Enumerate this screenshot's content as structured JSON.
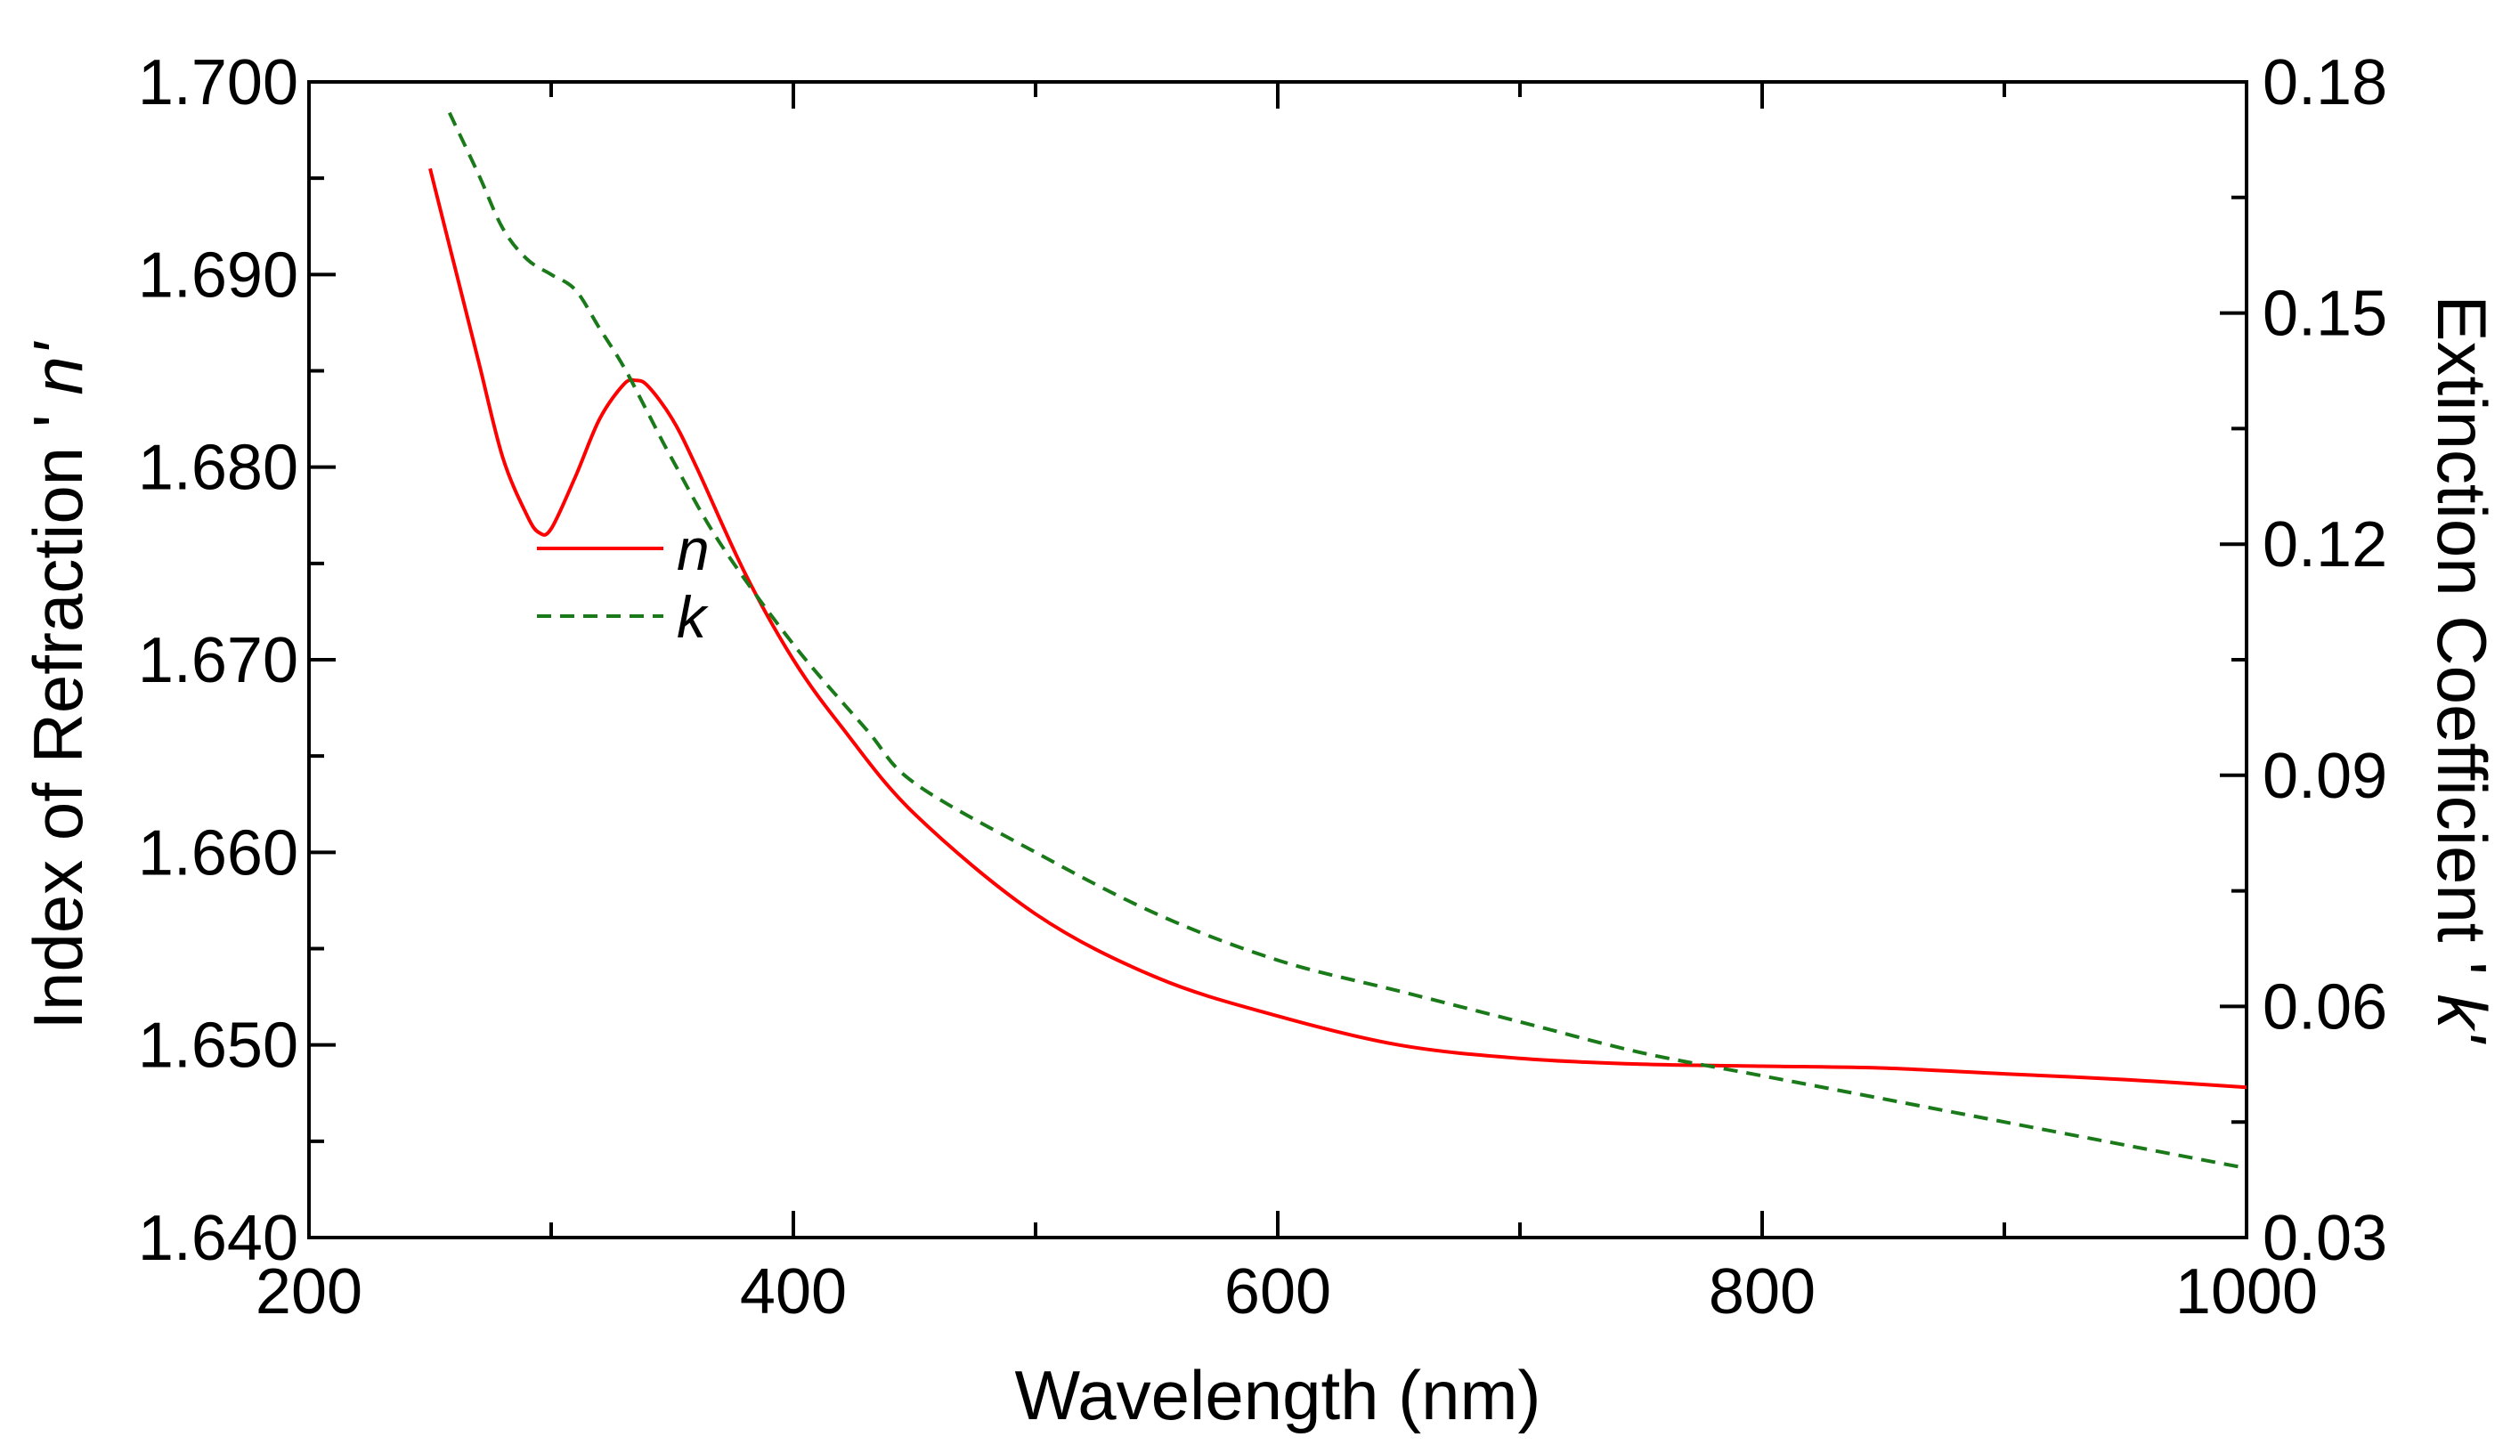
{
  "chart_data": {
    "type": "line",
    "title": "",
    "xlabel": "Wavelength (nm)",
    "ylabel_left": {
      "prefix": "Index of Refraction '",
      "symbol": "n'"
    },
    "ylabel_right": {
      "prefix": "Extinction Coefficient '",
      "symbol": "k'"
    },
    "xlim": [
      200,
      1000
    ],
    "ylim_left": [
      1.64,
      1.7
    ],
    "ylim_right": [
      0.03,
      0.18
    ],
    "xticks": [
      {
        "value": 200,
        "label": "200"
      },
      {
        "value": 400,
        "label": "400"
      },
      {
        "value": 600,
        "label": "600"
      },
      {
        "value": 800,
        "label": "800"
      },
      {
        "value": 1000,
        "label": "1000"
      }
    ],
    "yticks_left": [
      {
        "value": 1.64,
        "label": "1.640"
      },
      {
        "value": 1.65,
        "label": "1.650"
      },
      {
        "value": 1.66,
        "label": "1.660"
      },
      {
        "value": 1.67,
        "label": "1.670"
      },
      {
        "value": 1.68,
        "label": "1.680"
      },
      {
        "value": 1.69,
        "label": "1.690"
      },
      {
        "value": 1.7,
        "label": "1.700"
      }
    ],
    "yticks_right": [
      {
        "value": 0.03,
        "label": "0.03"
      },
      {
        "value": 0.06,
        "label": "0.06"
      },
      {
        "value": 0.09,
        "label": "0.09"
      },
      {
        "value": 0.12,
        "label": "0.12"
      },
      {
        "value": 0.15,
        "label": "0.15"
      },
      {
        "value": 0.18,
        "label": "0.18"
      }
    ],
    "legend": {
      "position": "upper-left-inside",
      "entries": [
        {
          "label": "n",
          "series": "n"
        },
        {
          "label": "k",
          "series": "k"
        }
      ]
    },
    "series": [
      {
        "name": "n",
        "axis": "left",
        "color": "#ff0000",
        "dash": "solid",
        "x": [
          250,
          260,
          270,
          280,
          290,
          295,
          300,
          310,
          320,
          330,
          335,
          340,
          350,
          360,
          380,
          400,
          420,
          450,
          500,
          550,
          600,
          650,
          700,
          750,
          800,
          850,
          900,
          950,
          1000
        ],
        "y": [
          1.6955,
          1.6905,
          1.6855,
          1.6805,
          1.6775,
          1.6766,
          1.6768,
          1.6795,
          1.6825,
          1.6843,
          1.6845,
          1.6842,
          1.6825,
          1.68,
          1.6745,
          1.67,
          1.6665,
          1.662,
          1.6568,
          1.6535,
          1.6515,
          1.65,
          1.6493,
          1.649,
          1.6489,
          1.6488,
          1.6485,
          1.6482,
          1.6478
        ]
      },
      {
        "name": "k",
        "axis": "right",
        "color": "#1a7a1a",
        "dash": "dashed",
        "x": [
          258,
          270,
          280,
          290,
          300,
          310,
          320,
          330,
          340,
          350,
          370,
          400,
          430,
          450,
          500,
          550,
          600,
          650,
          700,
          750,
          800,
          850,
          900,
          950,
          1000
        ],
        "y": [
          0.176,
          0.168,
          0.161,
          0.157,
          0.155,
          0.153,
          0.148,
          0.143,
          0.137,
          0.131,
          0.12,
          0.107,
          0.096,
          0.089,
          0.08,
          0.072,
          0.066,
          0.062,
          0.058,
          0.054,
          0.051,
          0.048,
          0.045,
          0.042,
          0.039
        ]
      }
    ],
    "grid": false
  }
}
